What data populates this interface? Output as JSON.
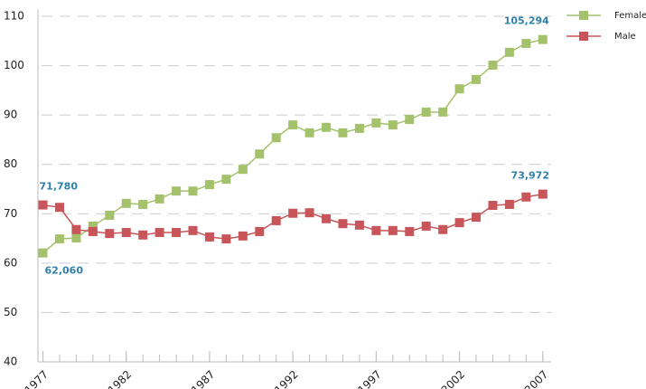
{
  "chart_data": {
    "type": "line",
    "x": [
      1977,
      1978,
      1979,
      1980,
      1981,
      1982,
      1983,
      1984,
      1985,
      1986,
      1987,
      1988,
      1989,
      1990,
      1991,
      1992,
      1993,
      1994,
      1995,
      1996,
      1997,
      1998,
      1999,
      2000,
      2001,
      2002,
      2003,
      2004,
      2005,
      2006,
      2007
    ],
    "series": [
      {
        "name": "Female",
        "color": "#a4c26c",
        "values": [
          62.06,
          64.9,
          65.1,
          67.5,
          69.7,
          72.1,
          71.9,
          73.0,
          74.6,
          74.6,
          75.9,
          77.0,
          79.0,
          82.1,
          85.4,
          88.0,
          86.4,
          87.5,
          86.4,
          87.3,
          88.4,
          88.0,
          89.1,
          90.6,
          90.6,
          95.3,
          97.2,
          100.1,
          102.7,
          104.5,
          105.294
        ],
        "value_labels": [
          "62,060",
          null,
          null,
          null,
          null,
          null,
          null,
          null,
          null,
          null,
          null,
          null,
          null,
          null,
          null,
          null,
          null,
          null,
          null,
          null,
          null,
          null,
          null,
          null,
          null,
          null,
          null,
          null,
          null,
          null,
          "105,294"
        ]
      },
      {
        "name": "Male",
        "color": "#c8555a",
        "values": [
          71.78,
          71.3,
          66.8,
          66.4,
          66.0,
          66.2,
          65.7,
          66.2,
          66.2,
          66.6,
          65.3,
          64.9,
          65.5,
          66.4,
          68.6,
          70.1,
          70.2,
          69.0,
          68.0,
          67.7,
          66.6,
          66.6,
          66.4,
          67.5,
          66.8,
          68.2,
          69.3,
          71.7,
          71.9,
          73.4,
          73.972
        ],
        "value_labels": [
          "71,780",
          null,
          null,
          null,
          null,
          null,
          null,
          null,
          null,
          null,
          null,
          null,
          null,
          null,
          null,
          null,
          null,
          null,
          null,
          null,
          null,
          null,
          null,
          null,
          null,
          null,
          null,
          null,
          null,
          null,
          "73,972"
        ]
      }
    ],
    "xlim": [
      1976.7,
      2007.5
    ],
    "xticks": [
      1977,
      1982,
      1987,
      1992,
      1997,
      2002,
      2007
    ],
    "ylim": [
      40,
      110
    ],
    "yticks": [
      40,
      50,
      60,
      70,
      80,
      90,
      100,
      110
    ],
    "grid": true,
    "legend": "top-right"
  }
}
